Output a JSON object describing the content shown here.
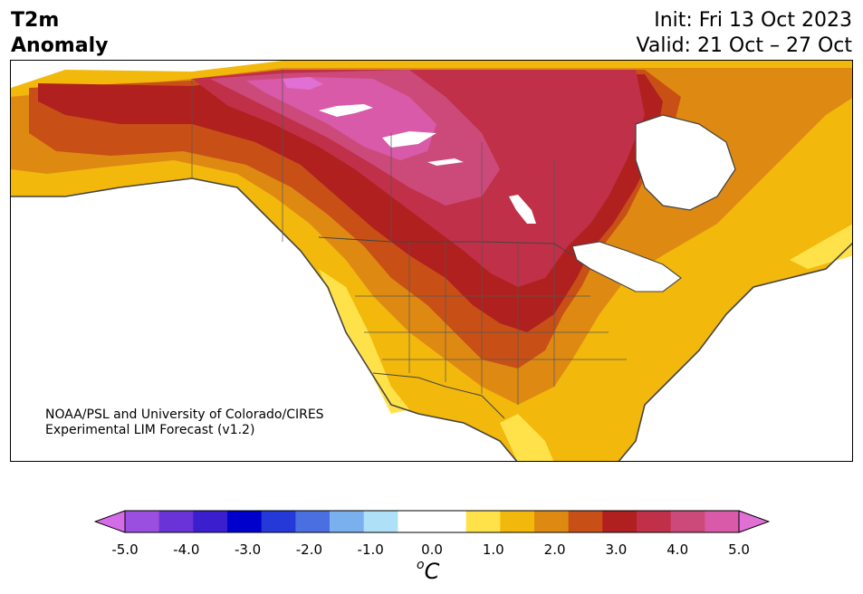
{
  "header": {
    "title_line1": "T2m",
    "title_line2": "Anomaly",
    "init": "Init: Fri 13 Oct 2023",
    "valid": "Valid: 21 Oct – 27 Oct"
  },
  "map": {
    "credit_line1": "NOAA/PSL and University of Colorado/CIRES",
    "credit_line2": "Experimental LIM Forecast (v1.2)",
    "region": "North America"
  },
  "colorbar": {
    "unit_base": "C",
    "unit_sup": "o",
    "ticks": [
      "-5.0",
      "-4.0",
      "-3.0",
      "-2.0",
      "-1.0",
      "0.0",
      "1.0",
      "2.0",
      "3.0",
      "4.0",
      "5.0"
    ],
    "range": [
      -5.0,
      5.0
    ],
    "extend": "both",
    "colors": [
      "#d46be8",
      "#9a4fe0",
      "#6a33d8",
      "#3b1fcf",
      "#0000cc",
      "#2538d8",
      "#4a6fe0",
      "#7ab0ee",
      "#aee0f8",
      "#ffffff",
      "#ffffff",
      "#ffe24a",
      "#f2b80c",
      "#de8a12",
      "#c85016",
      "#b0201e",
      "#c03048",
      "#cc4a7a",
      "#d85aa8",
      "#e070d4"
    ]
  }
}
